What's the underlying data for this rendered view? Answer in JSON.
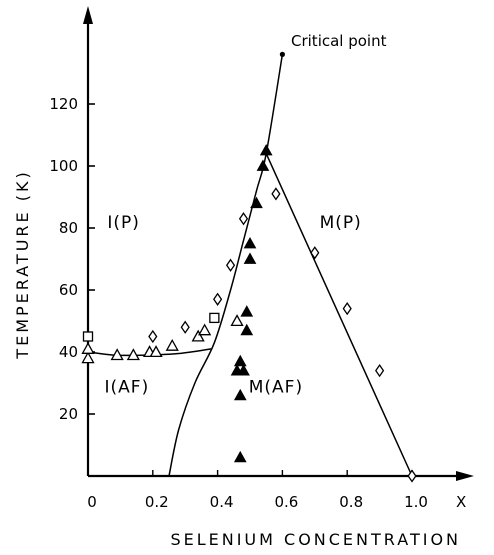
{
  "chart_data": {
    "type": "scatter",
    "title": "",
    "xlabel": "SELENIUM CONCENTRATION",
    "ylabel": "TEMPERATURE (K)",
    "x_axis_symbol": "X",
    "xlim": [
      0,
      1.1
    ],
    "ylim": [
      0,
      140
    ],
    "x_ticks": [
      {
        "value": 0,
        "label": "0"
      },
      {
        "value": 0.2,
        "label": "0.2"
      },
      {
        "value": 0.4,
        "label": "0.4"
      },
      {
        "value": 0.6,
        "label": "0.6"
      },
      {
        "value": 0.8,
        "label": "0.8"
      },
      {
        "value": 1.0,
        "label": "1.0"
      }
    ],
    "y_ticks": [
      {
        "value": 20,
        "label": "20"
      },
      {
        "value": 40,
        "label": "40"
      },
      {
        "value": 60,
        "label": "60"
      },
      {
        "value": 80,
        "label": "80"
      },
      {
        "value": 100,
        "label": "100"
      },
      {
        "value": 120,
        "label": "120"
      }
    ],
    "grid": false,
    "legend": "none",
    "series": [
      {
        "marker": "open-triangle",
        "points": [
          {
            "x": 0.0,
            "y": 38
          },
          {
            "x": 0.0,
            "y": 41
          },
          {
            "x": 0.09,
            "y": 39
          },
          {
            "x": 0.14,
            "y": 39
          },
          {
            "x": 0.19,
            "y": 40
          },
          {
            "x": 0.21,
            "y": 40
          },
          {
            "x": 0.26,
            "y": 42
          },
          {
            "x": 0.34,
            "y": 45
          },
          {
            "x": 0.36,
            "y": 47
          },
          {
            "x": 0.46,
            "y": 50
          }
        ]
      },
      {
        "marker": "open-square",
        "points": [
          {
            "x": 0.0,
            "y": 45
          },
          {
            "x": 0.39,
            "y": 51
          }
        ]
      },
      {
        "marker": "open-diamond",
        "points": [
          {
            "x": 0.2,
            "y": 45
          },
          {
            "x": 0.3,
            "y": 48
          },
          {
            "x": 0.4,
            "y": 57
          },
          {
            "x": 0.44,
            "y": 68
          },
          {
            "x": 0.48,
            "y": 83
          },
          {
            "x": 0.58,
            "y": 91
          },
          {
            "x": 0.7,
            "y": 72
          },
          {
            "x": 0.8,
            "y": 54
          },
          {
            "x": 0.9,
            "y": 34
          },
          {
            "x": 1.0,
            "y": 0
          }
        ]
      },
      {
        "marker": "filled-triangle",
        "points": [
          {
            "x": 0.55,
            "y": 105
          },
          {
            "x": 0.54,
            "y": 100
          },
          {
            "x": 0.52,
            "y": 88
          },
          {
            "x": 0.5,
            "y": 75
          },
          {
            "x": 0.5,
            "y": 70
          },
          {
            "x": 0.49,
            "y": 53
          },
          {
            "x": 0.49,
            "y": 47
          },
          {
            "x": 0.47,
            "y": 37
          },
          {
            "x": 0.46,
            "y": 34
          },
          {
            "x": 0.48,
            "y": 34
          },
          {
            "x": 0.47,
            "y": 26
          },
          {
            "x": 0.47,
            "y": 6
          }
        ]
      }
    ],
    "lines": [
      {
        "name": "phase-boundary-magnetic-metallic",
        "points": [
          [
            0.0,
            40
          ],
          [
            0.08,
            39
          ],
          [
            0.18,
            39
          ],
          [
            0.28,
            39.5
          ],
          [
            0.38,
            41
          ]
        ]
      },
      {
        "name": "phase-boundary-insulator-metal",
        "points": [
          [
            0.25,
            0
          ],
          [
            0.28,
            15
          ],
          [
            0.33,
            30
          ],
          [
            0.39,
            43
          ],
          [
            0.44,
            60
          ],
          [
            0.48,
            76
          ],
          [
            0.52,
            92
          ],
          [
            0.55,
            104
          ],
          [
            0.6,
            136
          ]
        ]
      },
      {
        "name": "phase-boundary-metallic-af",
        "points": [
          [
            0.55,
            104
          ],
          [
            1.0,
            0
          ]
        ]
      }
    ],
    "critical_point": {
      "x": 0.6,
      "y": 136,
      "label": "Critical point"
    },
    "regions": [
      {
        "label": "I(P)",
        "x": 0.11,
        "y": 80
      },
      {
        "label": "M(P)",
        "x": 0.78,
        "y": 80
      },
      {
        "label": "I(AF)",
        "x": 0.12,
        "y": 27
      },
      {
        "label": "M(AF)",
        "x": 0.58,
        "y": 27
      }
    ]
  }
}
